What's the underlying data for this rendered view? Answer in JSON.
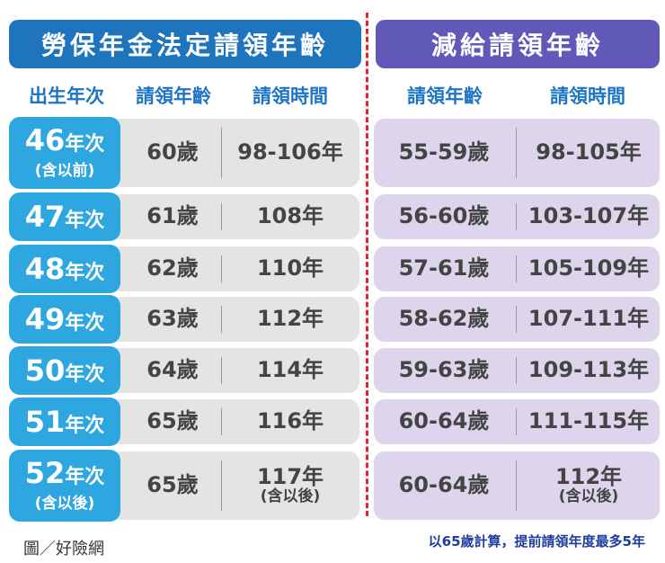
{
  "banner_left": "勞保年金法定請領年齡",
  "banner_right": "減給請領年齡",
  "headers": {
    "birth_year": "出生年次",
    "claim_age": "請領年齡",
    "claim_time": "請領時間",
    "reduced_age": "請領年齡",
    "reduced_time": "請領時間"
  },
  "rows": [
    {
      "year_num": "46",
      "year_unit": "年次",
      "year_note": "(含以前)",
      "age": "60歲",
      "time": "98-106年",
      "time_note": "",
      "reduced_age": "55-59歲",
      "reduced_time": "98-105年",
      "reduced_time_note": ""
    },
    {
      "year_num": "47",
      "year_unit": "年次",
      "year_note": "",
      "age": "61歲",
      "time": "108年",
      "time_note": "",
      "reduced_age": "56-60歲",
      "reduced_time": "103-107年",
      "reduced_time_note": ""
    },
    {
      "year_num": "48",
      "year_unit": "年次",
      "year_note": "",
      "age": "62歲",
      "time": "110年",
      "time_note": "",
      "reduced_age": "57-61歲",
      "reduced_time": "105-109年",
      "reduced_time_note": ""
    },
    {
      "year_num": "49",
      "year_unit": "年次",
      "year_note": "",
      "age": "63歲",
      "time": "112年",
      "time_note": "",
      "reduced_age": "58-62歲",
      "reduced_time": "107-111年",
      "reduced_time_note": ""
    },
    {
      "year_num": "50",
      "year_unit": "年次",
      "year_note": "",
      "age": "64歲",
      "time": "114年",
      "time_note": "",
      "reduced_age": "59-63歲",
      "reduced_time": "109-113年",
      "reduced_time_note": ""
    },
    {
      "year_num": "51",
      "year_unit": "年次",
      "year_note": "",
      "age": "65歲",
      "time": "116年",
      "time_note": "",
      "reduced_age": "60-64歲",
      "reduced_time": "111-115年",
      "reduced_time_note": ""
    },
    {
      "year_num": "52",
      "year_unit": "年次",
      "year_note": "(含以後)",
      "age": "65歲",
      "time": "117年",
      "time_note": "(含以後)",
      "reduced_age": "60-64歲",
      "reduced_time": "112年",
      "reduced_time_note": "(含以後)"
    }
  ],
  "footer_left": "圖／好險網",
  "footer_right": "以65歲計算，提前請領年度最多5年",
  "colors": {
    "banner_left": "#1e75be",
    "banner_right": "#6059b8",
    "badge": "#2ea7e0",
    "left_row_bg": "#e4e4e4",
    "right_row_bg": "#ddd5ec",
    "header_text": "#1f75c4",
    "divider": "#e1252c",
    "footer_right_text": "#1f3d9c"
  }
}
